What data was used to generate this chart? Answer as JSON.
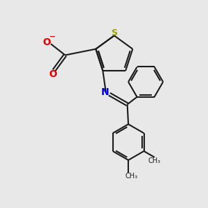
{
  "background_color": "#e8e8e8",
  "bond_color": "#1a1a1a",
  "s_color": "#a0a000",
  "n_color": "#0000ee",
  "o_color": "#ee0000",
  "line_width": 1.5,
  "fig_width": 3.0,
  "fig_height": 3.0,
  "dpi": 100,
  "xlim": [
    0,
    10
  ],
  "ylim": [
    0,
    10
  ]
}
